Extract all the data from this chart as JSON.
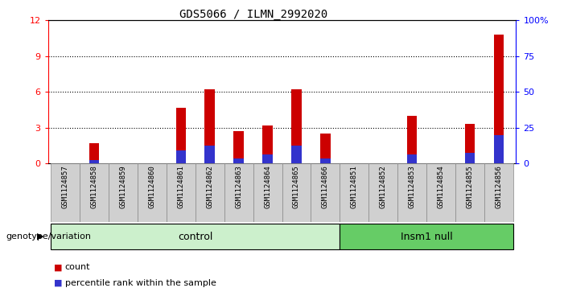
{
  "title": "GDS5066 / ILMN_2992020",
  "samples": [
    "GSM1124857",
    "GSM1124858",
    "GSM1124859",
    "GSM1124860",
    "GSM1124861",
    "GSM1124862",
    "GSM1124863",
    "GSM1124864",
    "GSM1124865",
    "GSM1124866",
    "GSM1124851",
    "GSM1124852",
    "GSM1124853",
    "GSM1124854",
    "GSM1124855",
    "GSM1124856"
  ],
  "red_values": [
    0,
    1.7,
    0,
    0,
    4.7,
    6.2,
    2.7,
    3.2,
    6.2,
    2.5,
    0,
    0,
    4.0,
    0,
    3.3,
    10.8
  ],
  "blue_values": [
    0,
    0.28,
    0,
    0,
    1.1,
    1.5,
    0.45,
    0.75,
    1.5,
    0.45,
    0,
    0,
    0.75,
    0,
    0.9,
    2.4
  ],
  "ylim_left": [
    0,
    12
  ],
  "yticks_left": [
    0,
    3,
    6,
    9,
    12
  ],
  "ylim_right": [
    0,
    100
  ],
  "yticks_right": [
    0,
    25,
    50,
    75,
    100
  ],
  "yticklabels_right": [
    "0",
    "25",
    "50",
    "75",
    "100%"
  ],
  "control_label": "control",
  "insm1_label": "Insm1 null",
  "group_label": "genotype/variation",
  "legend_count": "count",
  "legend_pct": "percentile rank within the sample",
  "bar_color_red": "#cc0000",
  "bar_color_blue": "#3333cc",
  "control_bg": "#ccf0cc",
  "insm1_bg": "#66cc66",
  "sample_bg": "#d0d0d0",
  "bar_width": 0.35,
  "title_fontsize": 10
}
